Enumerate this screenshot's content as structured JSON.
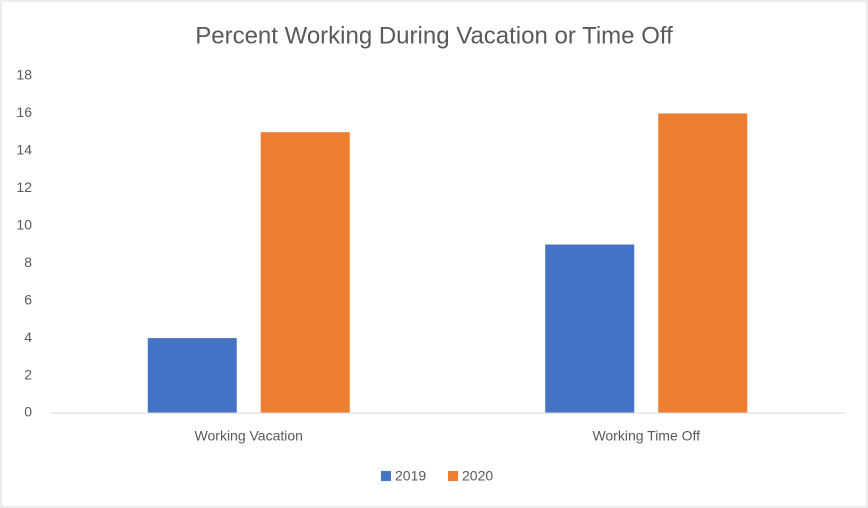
{
  "chart_data": {
    "type": "bar",
    "title": "Percent Working During Vacation or Time Off",
    "categories": [
      "Working Vacation",
      "Working Time Off"
    ],
    "series": [
      {
        "name": "2019",
        "color": "#4472c4",
        "values": [
          4,
          9
        ]
      },
      {
        "name": "2020",
        "color": "#ed7d31",
        "values": [
          15,
          16
        ]
      }
    ],
    "ylim": [
      0,
      18
    ],
    "yticks": [
      0,
      2,
      4,
      6,
      8,
      10,
      12,
      14,
      16,
      18
    ],
    "grid": false,
    "legend": "bottom"
  }
}
